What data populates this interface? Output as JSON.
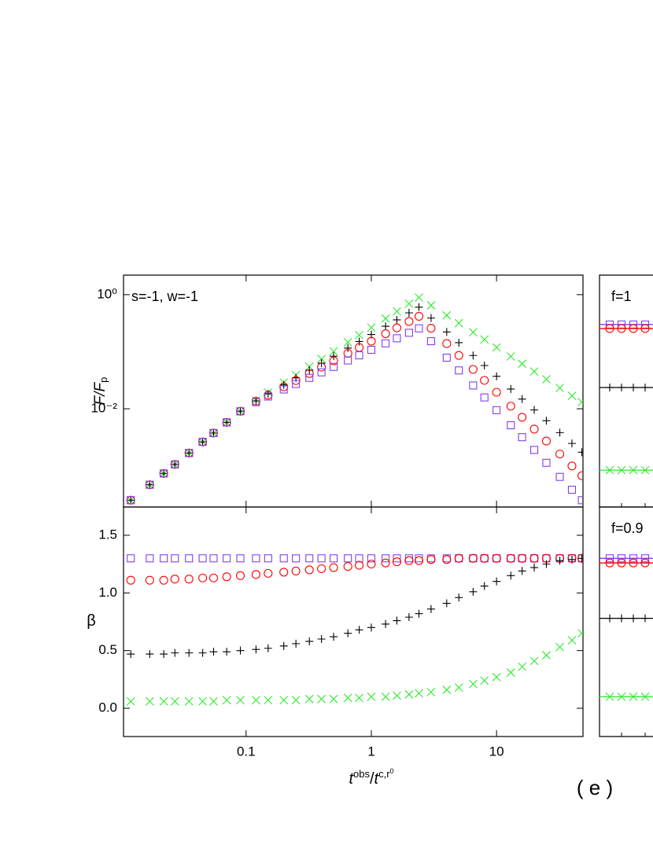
{
  "chart_data": [
    {
      "type": "scatter",
      "x": [
        0.012,
        0.017,
        0.022,
        0.027,
        0.035,
        0.045,
        0.055,
        0.07,
        0.09,
        0.12,
        0.15,
        0.2,
        0.25,
        0.32,
        0.4,
        0.5,
        0.65,
        0.8,
        1.0,
        1.3,
        1.6,
        2.0,
        2.4,
        3,
        4,
        5,
        6.5,
        8,
        10,
        13,
        16,
        20,
        25,
        32,
        40,
        48
      ],
      "xscale": "log",
      "xlim": [
        0.0105,
        49
      ],
      "xticks": [
        0.1,
        1,
        10
      ],
      "xlabel": [
        "t",
        "obs",
        "/",
        "t",
        "c,r",
        "0"
      ],
      "label": "( e )",
      "panels": [
        {
          "annotation": "s=-1,  w=-1",
          "ylabel": [
            "F/F",
            "p"
          ],
          "yscale": "log",
          "ylim": [
            0.00019,
            2.2
          ],
          "yticks": [
            {
              "value": 1,
              "label": "10⁰"
            },
            {
              "value": 0.01,
              "label": "10⁻²"
            }
          ],
          "series": [
            {
              "marker": "cross",
              "color": "#2ee82e",
              "values": [
                0.00025,
                0.000467,
                0.000735,
                0.00106,
                0.00168,
                0.00263,
                0.00376,
                0.00578,
                0.00904,
                0.0141,
                0.0192,
                0.0286,
                0.039,
                0.0548,
                0.0746,
                0.1016,
                0.146,
                0.195,
                0.265,
                0.382,
                0.508,
                0.693,
                0.891,
                0.65,
                0.434,
                0.317,
                0.219,
                0.164,
                0.119,
                0.0826,
                0.0617,
                0.045,
                0.0329,
                0.0232,
                0.0169,
                0.0131
              ]
            },
            {
              "marker": "plus",
              "color": "#000000",
              "values": [
                0.00025,
                0.000467,
                0.000735,
                0.00106,
                0.00168,
                0.00263,
                0.00376,
                0.00578,
                0.00904,
                0.0138,
                0.0183,
                0.0263,
                0.0348,
                0.0475,
                0.063,
                0.0834,
                0.116,
                0.151,
                0.2,
                0.279,
                0.361,
                0.48,
                0.603,
                0.389,
                0.222,
                0.144,
                0.0859,
                0.0573,
                0.0371,
                0.0222,
                0.0148,
                0.00955,
                0.00618,
                0.00382,
                0.00247,
                0.00173
              ]
            },
            {
              "marker": "circle",
              "color": "#ff0000",
              "values": [
                0.00025,
                0.000467,
                0.000735,
                0.00106,
                0.00168,
                0.00263,
                0.00376,
                0.00578,
                0.00904,
                0.0135,
                0.0174,
                0.0243,
                0.0313,
                0.0415,
                0.0536,
                0.0692,
                0.0935,
                0.1186,
                0.153,
                0.207,
                0.262,
                0.339,
                0.417,
                0.258,
                0.139,
                0.0861,
                0.0491,
                0.0315,
                0.0195,
                0.0111,
                0.00711,
                0.0044,
                0.00272,
                0.00161,
                0.000995,
                0.000673
              ]
            },
            {
              "marker": "square",
              "color": "#8040f0",
              "values": [
                0.00025,
                0.000467,
                0.000735,
                0.00106,
                0.00168,
                0.00263,
                0.00376,
                0.00578,
                0.00904,
                0.0131,
                0.0164,
                0.0218,
                0.0272,
                0.0348,
                0.0435,
                0.0542,
                0.0703,
                0.0865,
                0.108,
                0.14,
                0.172,
                0.215,
                0.257,
                0.153,
                0.0787,
                0.047,
                0.0256,
                0.0158,
                0.00944,
                0.00514,
                0.00318,
                0.0019,
                0.00113,
                0.00064,
                0.000381,
                0.00025
              ]
            }
          ]
        },
        {
          "ylabel": [
            "β"
          ],
          "yscale": "linear",
          "ylim": [
            -0.245,
            1.745
          ],
          "yticks": [
            {
              "value": 0,
              "label": "0.0"
            },
            {
              "value": 0.5,
              "label": "0.5"
            },
            {
              "value": 1,
              "label": "1.0"
            },
            {
              "value": 1.5,
              "label": "1.5"
            }
          ],
          "series": [
            {
              "marker": "square",
              "color": "#8040f0",
              "values": [
                1.3,
                1.3,
                1.3,
                1.3,
                1.3,
                1.3,
                1.3,
                1.3,
                1.3,
                1.3,
                1.3,
                1.3,
                1.3,
                1.3,
                1.3,
                1.3,
                1.3,
                1.3,
                1.3,
                1.3,
                1.3,
                1.3,
                1.3,
                1.3,
                1.3,
                1.3,
                1.3,
                1.3,
                1.3,
                1.3,
                1.3,
                1.3,
                1.3,
                1.3,
                1.3,
                1.3
              ]
            },
            {
              "marker": "circle",
              "color": "#ff0000",
              "values": [
                1.11,
                1.11,
                1.11,
                1.12,
                1.12,
                1.13,
                1.13,
                1.14,
                1.15,
                1.16,
                1.17,
                1.18,
                1.19,
                1.2,
                1.21,
                1.22,
                1.23,
                1.24,
                1.25,
                1.26,
                1.27,
                1.28,
                1.28,
                1.29,
                1.29,
                1.3,
                1.3,
                1.3,
                1.3,
                1.3,
                1.3,
                1.3,
                1.3,
                1.3,
                1.3,
                1.3
              ]
            },
            {
              "marker": "plus",
              "color": "#000000",
              "values": [
                0.47,
                0.47,
                0.47,
                0.48,
                0.48,
                0.48,
                0.49,
                0.49,
                0.5,
                0.51,
                0.52,
                0.54,
                0.56,
                0.58,
                0.6,
                0.62,
                0.65,
                0.68,
                0.7,
                0.73,
                0.76,
                0.79,
                0.82,
                0.86,
                0.91,
                0.96,
                1.01,
                1.06,
                1.1,
                1.15,
                1.19,
                1.22,
                1.25,
                1.28,
                1.29,
                1.3
              ]
            },
            {
              "marker": "cross",
              "color": "#2ee82e",
              "values": [
                0.06,
                0.06,
                0.06,
                0.06,
                0.06,
                0.06,
                0.06,
                0.07,
                0.07,
                0.07,
                0.07,
                0.07,
                0.07,
                0.08,
                0.08,
                0.08,
                0.09,
                0.09,
                0.1,
                0.1,
                0.11,
                0.12,
                0.13,
                0.14,
                0.16,
                0.18,
                0.21,
                0.24,
                0.27,
                0.31,
                0.36,
                0.41,
                0.46,
                0.53,
                0.59,
                0.65
              ]
            }
          ]
        }
      ]
    },
    {
      "type": "line",
      "panels": [
        {
          "annotation": "f=1",
          "yscale": "log",
          "ylim": [
            0.00019,
            2.2
          ],
          "series": [
            {
              "marker": "square",
              "color": "#8040f0",
              "values": [
                0.3
              ]
            },
            {
              "marker": "circle",
              "color": "#ff0000",
              "values": [
                0.255
              ]
            },
            {
              "marker": "plus",
              "color": "#000000",
              "values": [
                0.0236
              ]
            },
            {
              "marker": "cross",
              "color": "#2ee82e",
              "values": [
                0.00084
              ]
            }
          ]
        },
        {
          "annotation": "f=0.9",
          "yscale": "linear",
          "ylim": [
            -0.245,
            1.745
          ],
          "series": [
            {
              "marker": "square",
              "color": "#8040f0",
              "values": [
                1.3
              ]
            },
            {
              "marker": "circle",
              "color": "#ff0000",
              "values": [
                1.26
              ]
            },
            {
              "marker": "plus",
              "color": "#000000",
              "values": [
                0.78
              ]
            },
            {
              "marker": "cross",
              "color": "#2ee82e",
              "values": [
                0.1
              ]
            }
          ]
        }
      ]
    }
  ]
}
